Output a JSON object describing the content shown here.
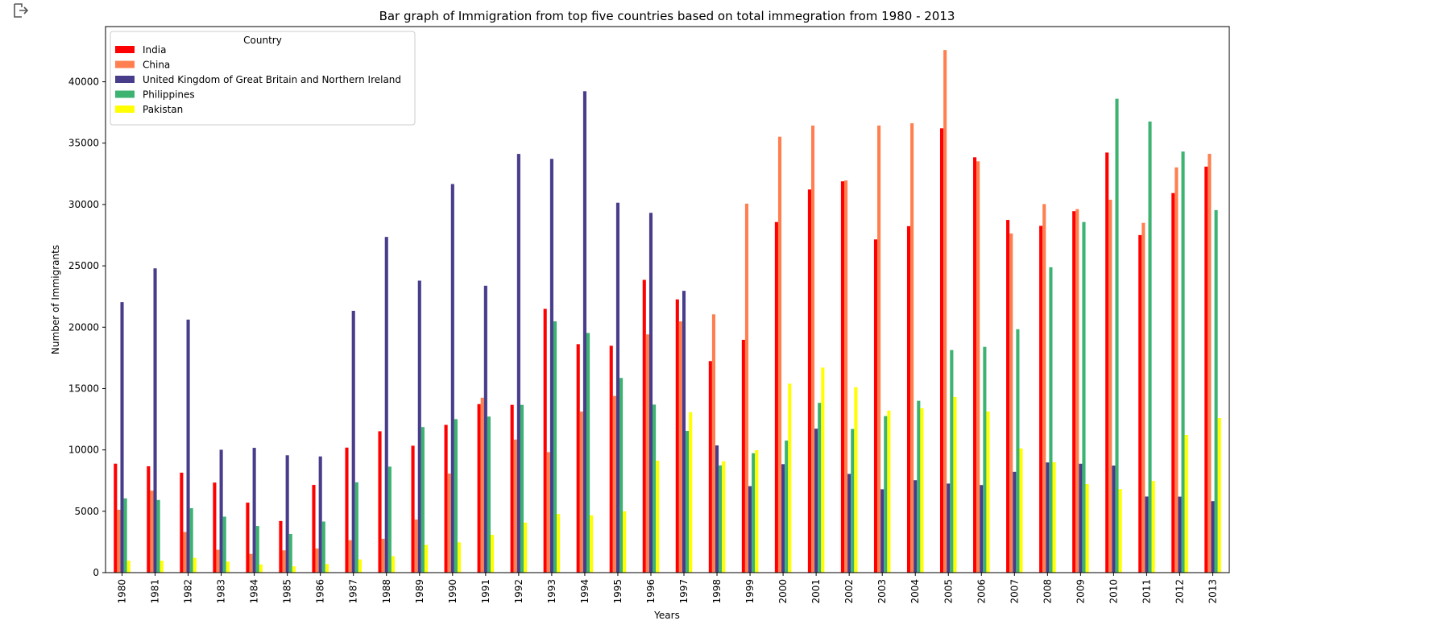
{
  "page": {
    "output_icon": "output-arrow-icon"
  },
  "chart_data": {
    "type": "bar",
    "title": "Bar graph of Immigration from top five countries based on total immegration from 1980 - 2013",
    "xlabel": "Years",
    "ylabel": "Number of Immigrants",
    "ylim": [
      0,
      44500
    ],
    "yticks": [
      0,
      5000,
      10000,
      15000,
      20000,
      25000,
      30000,
      35000,
      40000
    ],
    "grid": false,
    "legend": {
      "title": "Country",
      "placement": "top-left"
    },
    "categories": [
      "1980",
      "1981",
      "1982",
      "1983",
      "1984",
      "1985",
      "1986",
      "1987",
      "1988",
      "1989",
      "1990",
      "1991",
      "1992",
      "1993",
      "1994",
      "1995",
      "1996",
      "1997",
      "1998",
      "1999",
      "2000",
      "2001",
      "2002",
      "2003",
      "2004",
      "2005",
      "2006",
      "2007",
      "2008",
      "2009",
      "2010",
      "2011",
      "2012",
      "2013"
    ],
    "series": [
      {
        "name": "India",
        "color": "#ff0000",
        "values": [
          8880,
          8670,
          8147,
          7338,
          5704,
          4211,
          7150,
          10189,
          11522,
          10343,
          12041,
          13734,
          13673,
          21496,
          18620,
          18489,
          23859,
          22268,
          17241,
          18974,
          28572,
          31223,
          31889,
          27155,
          28235,
          36210,
          33848,
          28742,
          28261,
          29456,
          34235,
          27509,
          30933,
          33087
        ]
      },
      {
        "name": "China",
        "color": "#ff7f50",
        "values": [
          5123,
          6682,
          3308,
          1863,
          1527,
          1816,
          1960,
          2643,
          2758,
          4323,
          8076,
          14255,
          10846,
          9817,
          13128,
          14398,
          19415,
          20475,
          21049,
          30069,
          35529,
          36434,
          31961,
          36439,
          36619,
          42584,
          33518,
          27642,
          30037,
          29622,
          30391,
          28502,
          33024,
          34129
        ]
      },
      {
        "name": "United Kingdom of Great Britain and Northern Ireland",
        "color": "#483d8b",
        "values": [
          22045,
          24796,
          20620,
          10015,
          10170,
          9564,
          9470,
          21337,
          27359,
          23795,
          31668,
          23380,
          34123,
          33720,
          39231,
          30145,
          29322,
          22965,
          10367,
          7045,
          8840,
          11728,
          8046,
          6797,
          7533,
          7258,
          7140,
          8216,
          8979,
          8876,
          8724,
          6204,
          6195,
          5827
        ]
      },
      {
        "name": "Philippines",
        "color": "#3cb371",
        "values": [
          6051,
          5921,
          5249,
          4562,
          3801,
          3150,
          4166,
          7360,
          8639,
          11865,
          12509,
          12718,
          13670,
          20479,
          19532,
          15864,
          13692,
          11549,
          8735,
          9734,
          10763,
          13836,
          11707,
          12758,
          14004,
          18139,
          18400,
          19837,
          24887,
          28573,
          38617,
          36765,
          34315,
          29544
        ]
      },
      {
        "name": "Pakistan",
        "color": "#ffff00",
        "values": [
          978,
          972,
          1201,
          900,
          668,
          514,
          691,
          1072,
          1334,
          2261,
          2470,
          3079,
          4071,
          4777,
          4666,
          4994,
          9125,
          13073,
          9068,
          9979,
          15400,
          16708,
          15110,
          13205,
          13399,
          14314,
          13127,
          10124,
          8994,
          7217,
          6811,
          7468,
          11227,
          12603
        ]
      }
    ]
  }
}
